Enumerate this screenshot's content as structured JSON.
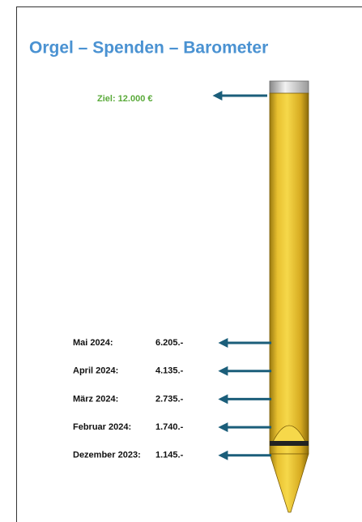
{
  "title": "Orgel – Spenden – Barometer",
  "goal": "Ziel: 12.000 €",
  "entries": [
    [
      "Mai 2024:",
      "6.205.-"
    ],
    [
      "April 2024:",
      "4.135.-"
    ],
    [
      "März 2024:",
      "2.735.-"
    ],
    [
      "Februar 2024:",
      "1.740.-"
    ],
    [
      "Dezember 2023:",
      "1.145.-"
    ]
  ]
}
